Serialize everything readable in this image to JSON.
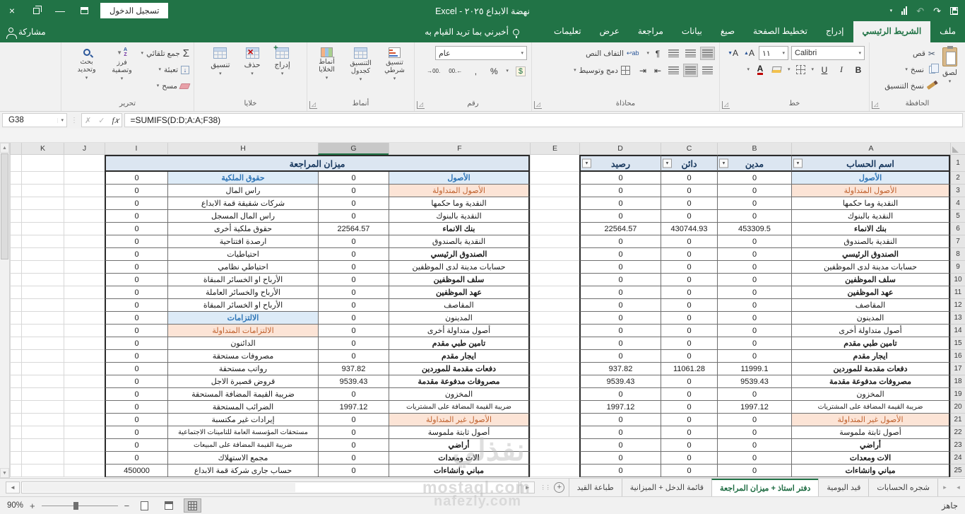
{
  "title_bar": {
    "app_title": "نهضة الابداع ٢٠٢٥ - Excel",
    "sign_in_label": "تسجيل الدخول"
  },
  "ribbon_tabs": [
    {
      "id": "file",
      "label": "ملف",
      "active": false
    },
    {
      "id": "home",
      "label": "الشريط الرئيسي",
      "active": true
    },
    {
      "id": "insert",
      "label": "إدراج",
      "active": false
    },
    {
      "id": "page-layout",
      "label": "تخطيط الصفحة",
      "active": false
    },
    {
      "id": "formulas",
      "label": "صيغ",
      "active": false
    },
    {
      "id": "data",
      "label": "بيانات",
      "active": false
    },
    {
      "id": "review",
      "label": "مراجعة",
      "active": false
    },
    {
      "id": "view",
      "label": "عرض",
      "active": false
    },
    {
      "id": "help",
      "label": "تعليمات",
      "active": false
    }
  ],
  "tell_me": {
    "label": "أخبرني بما تريد القيام به"
  },
  "share": {
    "label": "مشاركة"
  },
  "ribbon": {
    "clipboard": {
      "label": "الحافظة",
      "paste": "لصق",
      "cut": "قص",
      "copy": "نسخ",
      "format_painter": "نسخ التنسيق"
    },
    "font": {
      "label": "خط",
      "name": "Calibri",
      "size": "١١"
    },
    "alignment": {
      "label": "محاذاة",
      "wrap_text": "التفاف النص",
      "merge_center": "دمج وتوسيط"
    },
    "number": {
      "label": "رقم",
      "format": "عام"
    },
    "styles": {
      "label": "أنماط",
      "conditional": "تنسيق شرطي",
      "format_table": "التنسيق كجدول",
      "cell_styles": "أنماط الخلايا"
    },
    "cells": {
      "label": "خلايا",
      "insert": "إدراج",
      "delete": "حذف",
      "format": "تنسيق"
    },
    "editing": {
      "label": "تحرير",
      "autosum": "جمع تلقائي",
      "fill": "تعبئة",
      "clear": "مسح",
      "sort_filter": "فرز وتصفية",
      "find_select": "بحث وتحديد"
    }
  },
  "formula_bar": {
    "name_box": "G38",
    "formula": "=SUMIFS(D:D;A:A;F38)"
  },
  "grid": {
    "columns": [
      "A",
      "B",
      "C",
      "D",
      "E",
      "F",
      "G",
      "H",
      "I",
      "J",
      "K"
    ],
    "active_column": "G",
    "merged_header": "ميزان المراجعة",
    "table_headers": {
      "a": "اسم الحساب",
      "b": "مدين",
      "c": "دائن",
      "d": "رصيد"
    },
    "rows": [
      {
        "n": 2,
        "a": "الأصول",
        "as": "s",
        "b": "0",
        "c": "0",
        "d": "0",
        "f": "الأصول",
        "fs": "s",
        "g": "0",
        "h": "حقوق الملكية",
        "hs": "s",
        "i": "0"
      },
      {
        "n": 3,
        "a": "الأصول المتداولة",
        "as": "u",
        "b": "0",
        "c": "0",
        "d": "0",
        "f": "الأصول المتداولة",
        "fs": "u",
        "g": "0",
        "h": "راس المال",
        "hs": "",
        "i": "0"
      },
      {
        "n": 4,
        "a": "النقدية وما حكمها",
        "as": "",
        "b": "0",
        "c": "0",
        "d": "0",
        "f": "النقدية وما حكمها",
        "fs": "",
        "g": "0",
        "h": "شركات شقيقة قمة الابداع",
        "hs": "",
        "i": "0"
      },
      {
        "n": 5,
        "a": "النقدية بالبنوك",
        "as": "",
        "b": "0",
        "c": "0",
        "d": "0",
        "f": "النقدية بالبنوك",
        "fs": "",
        "g": "0",
        "h": "راس المال المسجل",
        "hs": "",
        "i": "0"
      },
      {
        "n": 6,
        "a": "بنك الانماء",
        "as": "b",
        "b": "453309.5",
        "c": "430744.93",
        "d": "22564.57",
        "f": "بنك الانماء",
        "fs": "b",
        "g": "22564.57",
        "h": "حقوق ملكية أخرى",
        "hs": "",
        "i": "0"
      },
      {
        "n": 7,
        "a": "النقدية بالصندوق",
        "as": "",
        "b": "0",
        "c": "0",
        "d": "0",
        "f": "النقدية بالصندوق",
        "fs": "",
        "g": "0",
        "h": "ارصدة افتتاحية",
        "hs": "",
        "i": "0"
      },
      {
        "n": 8,
        "a": "الصندوق الرئيسي",
        "as": "b",
        "b": "0",
        "c": "0",
        "d": "0",
        "f": "الصندوق الرئيسي",
        "fs": "b",
        "g": "0",
        "h": "احتياطيات",
        "hs": "",
        "i": "0"
      },
      {
        "n": 9,
        "a": "حسابات مدينة لدى الموظفين",
        "as": "",
        "b": "0",
        "c": "0",
        "d": "0",
        "f": "حسابات مدينة لدى الموظفين",
        "fs": "",
        "g": "0",
        "h": "احتياطي نظامي",
        "hs": "",
        "i": "0"
      },
      {
        "n": 10,
        "a": "سلف الموظفين",
        "as": "b",
        "b": "0",
        "c": "0",
        "d": "0",
        "f": "سلف الموظفين",
        "fs": "b",
        "g": "0",
        "h": "الأرباح او الخسائر المبقاة",
        "hs": "",
        "i": "0"
      },
      {
        "n": 11,
        "a": "عهد الموظفين",
        "as": "b",
        "b": "0",
        "c": "0",
        "d": "0",
        "f": "عهد الموظفين",
        "fs": "b",
        "g": "0",
        "h": "الأرباح والخسائر العاملة",
        "hs": "",
        "i": "0"
      },
      {
        "n": 12,
        "a": "المقاصف",
        "as": "",
        "b": "0",
        "c": "0",
        "d": "0",
        "f": "المقاصف",
        "fs": "",
        "g": "0",
        "h": "الأرباح او الخسائر المبقاة",
        "hs": "",
        "i": "0"
      },
      {
        "n": 13,
        "a": "المدينون",
        "as": "",
        "b": "0",
        "c": "0",
        "d": "0",
        "f": "المدينون",
        "fs": "",
        "g": "0",
        "h": "الالتزامات",
        "hs": "s",
        "i": "0"
      },
      {
        "n": 14,
        "a": "أصول متداولة أخرى",
        "as": "",
        "b": "0",
        "c": "0",
        "d": "0",
        "f": "أصول متداولة أخرى",
        "fs": "",
        "g": "0",
        "h": "الالتزامات المتداولة",
        "hs": "u",
        "i": "0"
      },
      {
        "n": 15,
        "a": "تامين طبي مقدم",
        "as": "b",
        "b": "0",
        "c": "0",
        "d": "0",
        "f": "تامين طبي مقدم",
        "fs": "b",
        "g": "0",
        "h": "الدائنون",
        "hs": "",
        "i": "0"
      },
      {
        "n": 16,
        "a": "ايجار مقدم",
        "as": "b",
        "b": "0",
        "c": "0",
        "d": "0",
        "f": "ايجار مقدم",
        "fs": "b",
        "g": "0",
        "h": "مصروفات مستحقة",
        "hs": "",
        "i": "0"
      },
      {
        "n": 17,
        "a": "دفعات مقدمة للموردين",
        "as": "b",
        "b": "11999.1",
        "c": "11061.28",
        "d": "937.82",
        "f": "دفعات مقدمة للموردين",
        "fs": "b",
        "g": "937.82",
        "h": "رواتب مستحقة",
        "hs": "",
        "i": "0"
      },
      {
        "n": 18,
        "a": "مصروفات مدفوعة مقدمة",
        "as": "b",
        "b": "9539.43",
        "c": "0",
        "d": "9539.43",
        "f": "مصروفات مدفوعة مقدمة",
        "fs": "b",
        "g": "9539.43",
        "h": "قروض قصيرة الاجل",
        "hs": "",
        "i": "0"
      },
      {
        "n": 19,
        "a": "المخزون",
        "as": "",
        "b": "0",
        "c": "0",
        "d": "0",
        "f": "المخزون",
        "fs": "",
        "g": "0",
        "h": "ضريبة القيمة المضافة المستحقة",
        "hs": "",
        "i": "0"
      },
      {
        "n": 20,
        "a": "ضريبة القيمة المضافة على المشتريات",
        "as": "",
        "b": "1997.12",
        "c": "0",
        "d": "1997.12",
        "f": "ضريبة القيمة المضافة على المشتريات",
        "fs": "",
        "g": "1997.12",
        "h": "الضرائب المستحقة",
        "hs": "",
        "i": "0"
      },
      {
        "n": 21,
        "a": "الأصول غير المتداولة",
        "as": "u",
        "b": "0",
        "c": "0",
        "d": "0",
        "f": "الأصول غير المتداولة",
        "fs": "u",
        "g": "0",
        "h": "إيرادات غير مكتسبة",
        "hs": "",
        "i": "0"
      },
      {
        "n": 22,
        "a": "أصول ثابتة ملموسة",
        "as": "",
        "b": "0",
        "c": "0",
        "d": "0",
        "f": "أصول ثابتة ملموسة",
        "fs": "",
        "g": "0",
        "h": "مستحقات المؤسسة العامة للتامينات الاجتماعية",
        "hs": "",
        "i": "0"
      },
      {
        "n": 23,
        "a": "أراضي",
        "as": "b",
        "b": "0",
        "c": "0",
        "d": "0",
        "f": "أراضي",
        "fs": "b",
        "g": "0",
        "h": "ضريبة القيمة المضافة على المبيعات",
        "hs": "",
        "i": "0"
      },
      {
        "n": 24,
        "a": "الات ومعدات",
        "as": "b",
        "b": "0",
        "c": "0",
        "d": "0",
        "f": "الات ومعدات",
        "fs": "b",
        "g": "0",
        "h": "مجمع الاستهلاك",
        "hs": "",
        "i": "0"
      },
      {
        "n": 25,
        "a": "مباني وانشاءات",
        "as": "b",
        "b": "0",
        "c": "0",
        "d": "0",
        "f": "مباني وانشاءات",
        "fs": "b",
        "g": "0",
        "h": "حساب جارى شركة قمة الابداع",
        "hs": "",
        "i": "450000"
      }
    ]
  },
  "sheet_tabs": [
    {
      "id": "accounts-tree",
      "label": "شجره الحسابات",
      "active": false
    },
    {
      "id": "journal-entry",
      "label": "قيد اليومية",
      "active": false
    },
    {
      "id": "ledger-trial-balance",
      "label": "دفتر استاذ + ميزان المراجعة",
      "active": true
    },
    {
      "id": "income-balance",
      "label": "قائمة الدخل + الميزانية",
      "active": false
    },
    {
      "id": "print-entry",
      "label": "طباعة القيد",
      "active": false
    }
  ],
  "status_bar": {
    "ready": "جاهز",
    "zoom_level": "90%"
  },
  "watermark": {
    "line1": "نفذلي",
    "line2": "mostaql.com",
    "line3": "nafezly.com"
  },
  "colors": {
    "brand_green": "#217346",
    "header_blue_bg": "#dce6f1",
    "section_bg": "#ddebf7",
    "section_text": "#2e75b6",
    "subsection_bg": "#fce4d6",
    "subsection_text": "#c0622f"
  }
}
